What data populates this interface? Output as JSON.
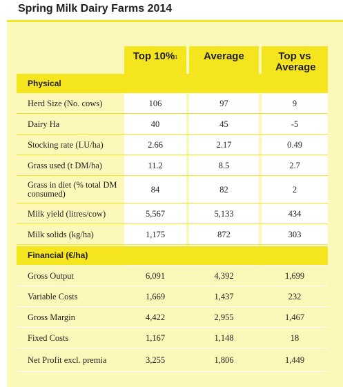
{
  "title": "Spring Milk Dairy Farms 2014",
  "columns": {
    "top10": "Top 10%",
    "top10_note": "1",
    "average": "Average",
    "diff": "Top vs Average"
  },
  "physical": {
    "heading": "Physical",
    "rows": [
      {
        "label": "Herd Size (No. cows)",
        "top10": "106",
        "average": "97",
        "diff": "9"
      },
      {
        "label": "Dairy Ha",
        "top10": "40",
        "average": "45",
        "diff": "-5"
      },
      {
        "label": "Stocking rate (LU/ha)",
        "top10": "2.66",
        "average": "2.17",
        "diff": "0.49"
      },
      {
        "label": "Grass used (t DM/ha)",
        "top10": "11.2",
        "average": "8.5",
        "diff": "2.7"
      },
      {
        "label": "Grass in diet (% total DM consumed)",
        "top10": "84",
        "average": "82",
        "diff": "2"
      },
      {
        "label": "Milk yield (litres/cow)",
        "top10": "5,567",
        "average": "5,133",
        "diff": "434"
      },
      {
        "label": "Milk solids (kg/ha)",
        "top10": "1,175",
        "average": "872",
        "diff": "303"
      }
    ]
  },
  "financial": {
    "heading": "Financial (€/ha)",
    "rows": [
      {
        "label": "Gross Output",
        "top10": "6,091",
        "average": "4,392",
        "diff": "1,699"
      },
      {
        "label": "Variable Costs",
        "top10": "1,669",
        "average": "1,437",
        "diff": "232"
      },
      {
        "label": "Gross Margin",
        "top10": "4,422",
        "average": "2,955",
        "diff": "1,467"
      },
      {
        "label": "Fixed Costs",
        "top10": "1,167",
        "average": "1,148",
        "diff": "18"
      },
      {
        "label": "Net Profit excl. premia",
        "top10": "3,255",
        "average": "1,806",
        "diff": "1,449"
      }
    ]
  }
}
